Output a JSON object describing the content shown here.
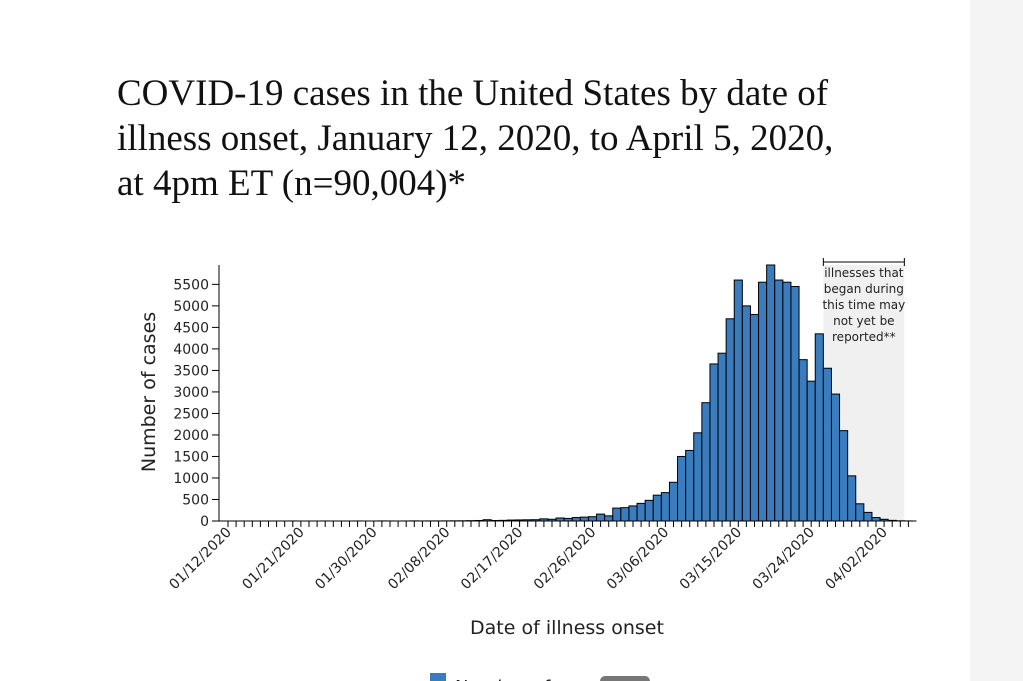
{
  "chart_data": {
    "type": "bar",
    "title_lines": [
      "COVID-19 cases in the United States by date of",
      "illness onset, January 12, 2020, to April 5, 2020,",
      "at 4pm ET (n=90,004)*"
    ],
    "x_label": "Date of illness onset",
    "y_label": "Number of cases",
    "categories": [
      "01/12/2020",
      null,
      null,
      null,
      null,
      null,
      null,
      null,
      null,
      "01/21/2020",
      null,
      null,
      null,
      null,
      null,
      null,
      null,
      null,
      "01/30/2020",
      null,
      null,
      null,
      null,
      null,
      null,
      null,
      null,
      "02/08/2020",
      null,
      null,
      null,
      null,
      null,
      null,
      null,
      null,
      "02/17/2020",
      null,
      null,
      null,
      null,
      null,
      null,
      null,
      null,
      "02/26/2020",
      null,
      null,
      null,
      null,
      null,
      null,
      null,
      null,
      "03/06/2020",
      null,
      null,
      null,
      null,
      null,
      null,
      null,
      null,
      "03/15/2020",
      null,
      null,
      null,
      null,
      null,
      null,
      null,
      null,
      "03/24/2020",
      null,
      null,
      null,
      null,
      null,
      null,
      null,
      null,
      "04/02/2020",
      null,
      null,
      null
    ],
    "series": [
      {
        "name": "Number of cases",
        "color": "#3a7cbd",
        "values": [
          0,
          0,
          0,
          0,
          0,
          0,
          0,
          0,
          1,
          0,
          0,
          0,
          1,
          0,
          0,
          0,
          1,
          0,
          0,
          2,
          1,
          0,
          1,
          3,
          1,
          2,
          2,
          3,
          4,
          5,
          8,
          12,
          30,
          12,
          15,
          22,
          25,
          28,
          30,
          50,
          40,
          70,
          60,
          80,
          90,
          100,
          160,
          120,
          300,
          310,
          350,
          410,
          480,
          600,
          660,
          900,
          1500,
          1640,
          2050,
          2750,
          3650,
          3900,
          4700,
          5600,
          5000,
          4800,
          5550,
          5950,
          5600,
          5550,
          5450,
          3750,
          3250,
          4350,
          3550,
          2950,
          2100,
          1050,
          400,
          200,
          80,
          40,
          15,
          5,
          2
        ]
      }
    ],
    "ylim": [
      0,
      5950
    ],
    "yticks": [
      0,
      500,
      1000,
      1500,
      2000,
      2500,
      3000,
      3500,
      4000,
      4500,
      5000,
      5500
    ],
    "annotation": {
      "lines": [
        "illnesses that",
        "began during",
        "this time may",
        "not yet be",
        "reported**"
      ],
      "range": [
        74,
        83
      ]
    }
  }
}
